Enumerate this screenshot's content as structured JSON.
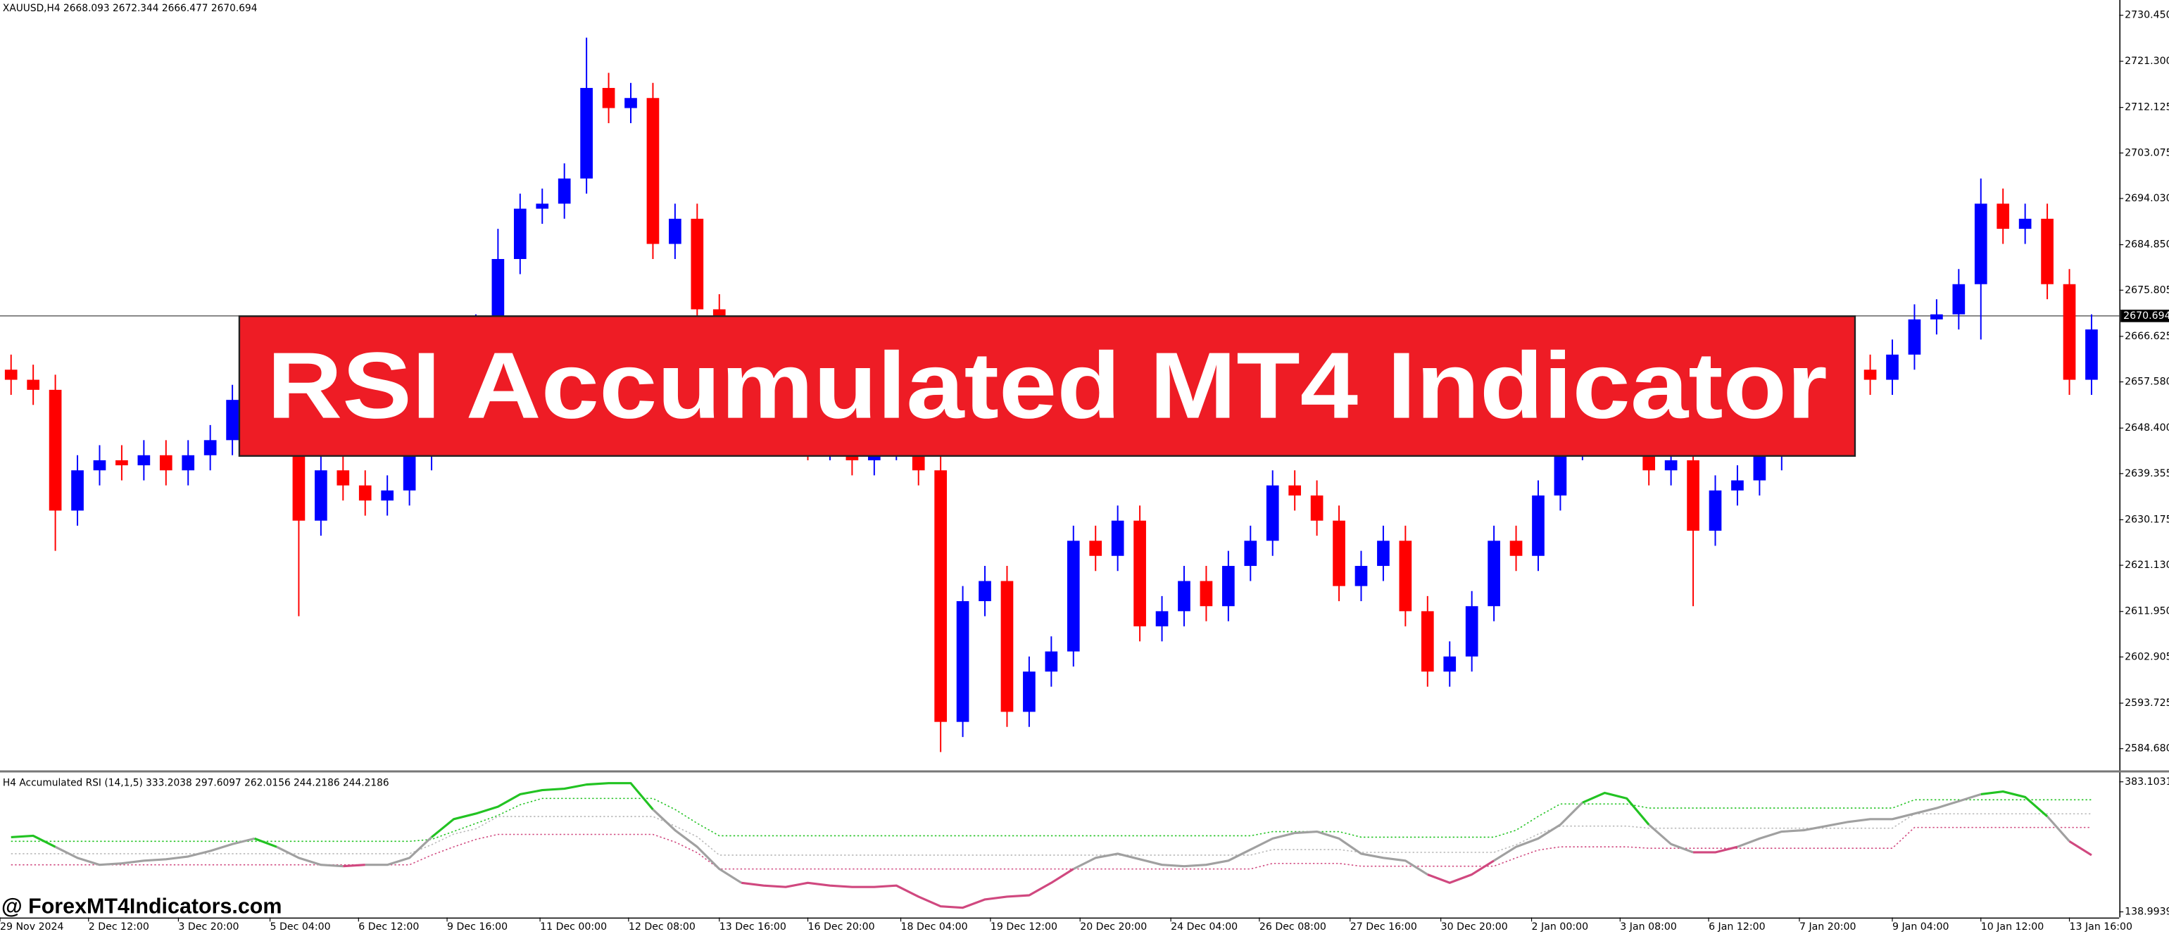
{
  "chart_data": [
    {
      "type": "candlestick",
      "symbol_info": "XAUUSD,H4  2668.093 2672.344 2666.477 2670.694",
      "up_color": "#0000ff",
      "down_color": "#ff0000",
      "open": [
        2660,
        2658,
        2656,
        2632,
        2640,
        2642,
        2641,
        2643,
        2640,
        2643,
        2646,
        2654,
        2652,
        2648,
        2630,
        2640,
        2637,
        2634,
        2636,
        2643,
        2655,
        2664,
        2668,
        2682,
        2692,
        2693,
        2698,
        2716,
        2712,
        2714,
        2685,
        2690,
        2672,
        2662,
        2655,
        2650,
        2648,
        2645,
        2646,
        2642,
        2645,
        2648,
        2640,
        2590,
        2614,
        2618,
        2592,
        2600,
        2604,
        2626,
        2623,
        2630,
        2609,
        2612,
        2618,
        2613,
        2621,
        2626,
        2637,
        2635,
        2630,
        2617,
        2621,
        2626,
        2612,
        2600,
        2603,
        2613,
        2626,
        2623,
        2635,
        2645,
        2652,
        2650,
        2646,
        2640,
        2642,
        2628,
        2636,
        2638,
        2643,
        2648,
        2652,
        2656,
        2660,
        2658,
        2663,
        2670,
        2671,
        2677,
        2693,
        2688,
        2690,
        2677,
        2658
      ],
      "high": [
        2663,
        2661,
        2659,
        2643,
        2645,
        2645,
        2646,
        2646,
        2646,
        2649,
        2657,
        2657,
        2655,
        2651,
        2643,
        2643,
        2640,
        2639,
        2646,
        2658,
        2667,
        2671,
        2688,
        2695,
        2696,
        2701,
        2726,
        2719,
        2717,
        2717,
        2693,
        2693,
        2675,
        2665,
        2658,
        2653,
        2651,
        2649,
        2649,
        2648,
        2651,
        2651,
        2643,
        2617,
        2621,
        2621,
        2603,
        2607,
        2629,
        2629,
        2633,
        2633,
        2615,
        2621,
        2621,
        2624,
        2629,
        2640,
        2640,
        2638,
        2633,
        2624,
        2629,
        2629,
        2615,
        2606,
        2616,
        2629,
        2629,
        2638,
        2648,
        2655,
        2655,
        2653,
        2649,
        2645,
        2645,
        2639,
        2641,
        2646,
        2651,
        2655,
        2659,
        2663,
        2663,
        2666,
        2673,
        2674,
        2680,
        2698,
        2696,
        2693,
        2693,
        2680,
        2671
      ],
      "low": [
        2655,
        2653,
        2624,
        2629,
        2637,
        2638,
        2638,
        2637,
        2637,
        2640,
        2643,
        2649,
        2645,
        2611,
        2627,
        2634,
        2631,
        2631,
        2633,
        2640,
        2652,
        2661,
        2665,
        2679,
        2689,
        2690,
        2695,
        2709,
        2709,
        2682,
        2682,
        2669,
        2659,
        2652,
        2647,
        2645,
        2642,
        2642,
        2639,
        2639,
        2642,
        2637,
        2584,
        2587,
        2611,
        2589,
        2589,
        2597,
        2601,
        2620,
        2620,
        2606,
        2606,
        2609,
        2610,
        2610,
        2618,
        2623,
        2632,
        2627,
        2614,
        2614,
        2618,
        2609,
        2597,
        2597,
        2600,
        2610,
        2620,
        2620,
        2632,
        2642,
        2647,
        2643,
        2637,
        2637,
        2613,
        2625,
        2633,
        2635,
        2640,
        2645,
        2649,
        2653,
        2655,
        2655,
        2660,
        2667,
        2668,
        2666,
        2685,
        2685,
        2674,
        2655,
        2655
      ],
      "close": [
        2658,
        2656,
        2632,
        2640,
        2642,
        2641,
        2643,
        2640,
        2643,
        2646,
        2654,
        2652,
        2648,
        2630,
        2640,
        2637,
        2634,
        2636,
        2643,
        2655,
        2664,
        2668,
        2682,
        2692,
        2693,
        2698,
        2716,
        2712,
        2714,
        2685,
        2690,
        2672,
        2662,
        2655,
        2650,
        2648,
        2645,
        2646,
        2642,
        2645,
        2648,
        2640,
        2590,
        2614,
        2618,
        2592,
        2600,
        2604,
        2626,
        2623,
        2630,
        2609,
        2612,
        2618,
        2613,
        2621,
        2626,
        2637,
        2635,
        2630,
        2617,
        2621,
        2626,
        2612,
        2600,
        2603,
        2613,
        2626,
        2623,
        2635,
        2645,
        2652,
        2650,
        2646,
        2640,
        2642,
        2628,
        2636,
        2638,
        2643,
        2648,
        2652,
        2656,
        2660,
        2658,
        2663,
        2670,
        2671,
        2677,
        2693,
        2688,
        2690,
        2677,
        2658,
        2668
      ],
      "xlim": [
        -0.5,
        95.25
      ],
      "ylim": [
        2580.57,
        2733.48
      ],
      "yticks": [
        {
          "value": 2730.45,
          "label": "2730.450"
        },
        {
          "value": 2721.3,
          "label": "2721.300"
        },
        2712.125,
        2703.075,
        {
          "value": 2694.03,
          "label": "2694.030"
        },
        {
          "value": 2684.85,
          "label": "2684.850"
        },
        2675.805,
        2666.625,
        {
          "value": 2657.58,
          "label": "2657.580"
        },
        {
          "value": 2648.4,
          "label": "2648.400"
        },
        2639.355,
        2630.175,
        {
          "value": 2621.13,
          "label": "2621.130"
        },
        {
          "value": 2611.95,
          "label": "2611.950"
        },
        2602.905,
        2593.725,
        {
          "value": 2584.68,
          "label": "2584.680"
        }
      ],
      "last_price": 2670.694,
      "x_labels": [
        {
          "value": -0.5,
          "label": "29 Nov 2024"
        },
        {
          "value": 3.5,
          "label": "2 Dec 12:00"
        },
        {
          "value": 7.56,
          "label": "3 Dec 20:00"
        },
        {
          "value": 11.7,
          "label": "5 Dec 04:00"
        },
        {
          "value": 15.7,
          "label": "6 Dec 12:00"
        },
        {
          "value": 19.7,
          "label": "9 Dec 16:00"
        },
        {
          "value": 23.9,
          "label": "11 Dec 00:00"
        },
        {
          "value": 27.9,
          "label": "12 Dec 08:00"
        },
        {
          "value": 32,
          "label": "13 Dec 16:00"
        },
        {
          "value": 36,
          "label": "16 Dec 20:00"
        },
        {
          "value": 40.2,
          "label": "18 Dec 04:00"
        },
        {
          "value": 44.25,
          "label": "19 Dec 12:00"
        },
        {
          "value": 48.3,
          "label": "20 Dec 20:00"
        },
        {
          "value": 52.4,
          "label": "24 Dec 04:00"
        },
        {
          "value": 56.4,
          "label": "26 Dec 08:00"
        },
        {
          "value": 60.5,
          "label": "27 Dec 16:00"
        },
        {
          "value": 64.6,
          "label": "30 Dec 20:00"
        },
        {
          "value": 68.7,
          "label": "2 Jan 00:00"
        },
        {
          "value": 72.7,
          "label": "3 Jan 08:00"
        },
        {
          "value": 76.7,
          "label": "6 Jan 12:00"
        },
        {
          "value": 80.8,
          "label": "7 Jan 20:00"
        },
        {
          "value": 85,
          "label": "9 Jan 04:00"
        },
        {
          "value": 89,
          "label": "10 Jan 12:00"
        },
        {
          "value": 93,
          "label": "13 Jan 16:00"
        }
      ]
    },
    {
      "type": "line",
      "title": "H4 Accumulated RSI (14,1,5) 333.2038 297.6097 262.0156 244.2186 244.2186",
      "xlim": [
        -0.5,
        95.25
      ],
      "ylim": [
        128.6,
        401.3
      ],
      "yticks": [
        138.9939,
        383.1031
      ],
      "up_color": "#22c322",
      "down_color": "#d0487f",
      "neutral_color": "#a0a0a0",
      "values": [
        279.2,
        281.8,
        261.0,
        240.3,
        227.3,
        229.9,
        235.1,
        237.7,
        242.9,
        253.3,
        266.2,
        276.6,
        261.0,
        240.3,
        227.3,
        224.7,
        227.3,
        227.3,
        240.3,
        279.2,
        313.0,
        323.4,
        336.4,
        359.7,
        367.5,
        370.1,
        378.0,
        380.5,
        380.5,
        331.2,
        292.2,
        261.0,
        219.5,
        193.5,
        188.3,
        185.7,
        193.5,
        188.3,
        185.7,
        185.7,
        188.3,
        167.5,
        149.4,
        146.8,
        162.3,
        167.5,
        170.1,
        193.5,
        219.5,
        240.3,
        248.1,
        237.7,
        227.3,
        224.7,
        227.3,
        235.1,
        255.9,
        276.6,
        287.0,
        289.6,
        276.6,
        248.1,
        240.3,
        235.1,
        209.1,
        193.5,
        209.1,
        235.1,
        261.0,
        276.6,
        302.6,
        344.1,
        362.3,
        351.9,
        302.6,
        266.2,
        250.7,
        250.7,
        261.0,
        276.6,
        289.6,
        292.2,
        300.0,
        307.8,
        313.0,
        313.0,
        323.4,
        333.8,
        346.7,
        359.7,
        364.9,
        354.5,
        318.2,
        271.4,
        245.5
      ],
      "upper": {
        "color": "#22c322",
        "values": [
          271.4,
          271.4,
          271.4,
          271.4,
          271.4,
          271.4,
          271.4,
          271.4,
          271.4,
          271.4,
          271.4,
          271.4,
          271.4,
          271.4,
          271.4,
          271.4,
          271.4,
          271.4,
          271.4,
          275.0,
          290.0,
          305.0,
          320.0,
          340.0,
          351.9,
          351.9,
          351.9,
          351.9,
          351.9,
          351.9,
          331.2,
          305.2,
          281.8,
          281.8,
          281.8,
          281.8,
          281.8,
          281.8,
          281.8,
          281.8,
          281.8,
          281.8,
          281.8,
          281.8,
          281.8,
          281.8,
          281.8,
          281.8,
          281.8,
          281.8,
          281.8,
          281.8,
          281.8,
          281.8,
          281.8,
          281.8,
          281.8,
          289.6,
          289.6,
          289.6,
          289.6,
          279.2,
          279.2,
          279.2,
          279.2,
          279.2,
          279.2,
          279.2,
          292.2,
          318.2,
          341.5,
          341.5,
          341.5,
          341.5,
          333.8,
          333.8,
          333.8,
          333.8,
          333.8,
          333.8,
          333.8,
          333.8,
          333.8,
          333.8,
          333.8,
          333.8,
          349.3,
          349.3,
          349.3,
          349.3,
          349.3,
          349.3,
          349.3,
          349.3,
          349.3
        ]
      },
      "middle": {
        "color": "#b8b8b8",
        "values": [
          248.1,
          248.1,
          248.1,
          248.1,
          248.1,
          248.1,
          248.1,
          248.1,
          248.1,
          248.1,
          248.1,
          248.1,
          248.1,
          248.1,
          248.1,
          248.1,
          248.1,
          248.1,
          248.1,
          265.0,
          285.0,
          295.0,
          318.0,
          318.0,
          318.0,
          318.0,
          318.0,
          318.0,
          318.0,
          318.0,
          300.0,
          280.0,
          245.5,
          245.5,
          245.5,
          245.5,
          245.5,
          245.5,
          245.5,
          245.5,
          245.5,
          245.5,
          245.5,
          245.5,
          245.5,
          245.5,
          245.5,
          245.5,
          245.5,
          245.5,
          245.5,
          245.5,
          245.5,
          245.5,
          245.5,
          245.5,
          245.5,
          255.9,
          255.9,
          255.9,
          255.9,
          250.7,
          250.7,
          250.7,
          250.7,
          250.7,
          250.7,
          250.7,
          265.0,
          285.0,
          300.0,
          300.0,
          300.0,
          300.0,
          296.0,
          296.0,
          296.0,
          296.0,
          296.0,
          296.0,
          296.0,
          296.0,
          296.0,
          296.0,
          296.0,
          296.0,
          323.0,
          323.0,
          323.0,
          323.0,
          323.0,
          323.0,
          323.0,
          323.0,
          323.0
        ]
      },
      "lower": {
        "color": "#d0487f",
        "values": [
          227.3,
          227.3,
          227.3,
          227.3,
          227.3,
          227.3,
          227.3,
          227.3,
          227.3,
          227.3,
          227.3,
          227.3,
          227.3,
          227.3,
          227.3,
          227.3,
          227.3,
          227.3,
          227.3,
          245.5,
          261.0,
          275.0,
          284.4,
          284.4,
          284.4,
          284.4,
          284.4,
          284.4,
          284.4,
          284.4,
          270.0,
          250.0,
          219.5,
          219.5,
          219.5,
          219.5,
          219.5,
          219.5,
          219.5,
          219.5,
          219.5,
          219.5,
          219.5,
          219.5,
          219.5,
          219.5,
          219.5,
          219.5,
          219.5,
          219.5,
          219.5,
          219.5,
          219.5,
          219.5,
          219.5,
          219.5,
          219.5,
          229.9,
          229.9,
          229.9,
          229.9,
          224.7,
          224.7,
          224.7,
          224.7,
          224.7,
          224.7,
          224.7,
          240.3,
          255.0,
          261.0,
          261.0,
          261.0,
          261.0,
          258.4,
          258.4,
          258.4,
          258.4,
          258.4,
          258.4,
          258.4,
          258.4,
          258.4,
          258.4,
          258.4,
          258.4,
          297.4,
          297.4,
          297.4,
          297.4,
          297.4,
          297.4,
          297.4,
          297.4,
          297.4
        ]
      }
    }
  ],
  "banner": {
    "title": "RSI Accumulated MT4 Indicator"
  },
  "watermark": "@ ForexMT4Indicators.com"
}
